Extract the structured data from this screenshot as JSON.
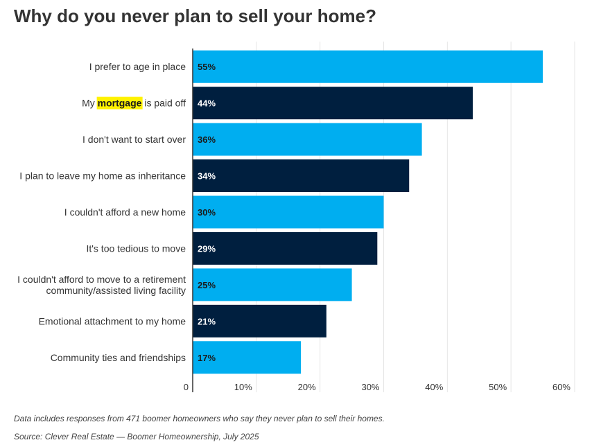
{
  "chart_data": {
    "type": "bar",
    "orientation": "horizontal",
    "title": "Why do you never plan to sell your home?",
    "categories": [
      [
        "I prefer to age in place"
      ],
      [
        "My mortgage is paid off"
      ],
      [
        "I don't want to start over"
      ],
      [
        "I plan to leave my home as inheritance"
      ],
      [
        "I couldn't afford a new home"
      ],
      [
        "It's too tedious to move"
      ],
      [
        "I couldn't afford to move to a retirement",
        "community/assisted living facility"
      ],
      [
        "Emotional attachment to my home"
      ],
      [
        "Community ties and friendships"
      ]
    ],
    "highlight": {
      "category_index": 1,
      "text": "mortgage",
      "before": "My ",
      "after": " is paid off",
      "color": "#fff200"
    },
    "values": [
      55,
      44,
      36,
      34,
      30,
      29,
      25,
      21,
      17
    ],
    "value_labels": [
      "55%",
      "44%",
      "36%",
      "34%",
      "30%",
      "29%",
      "25%",
      "21%",
      "17%"
    ],
    "bar_colors": [
      "#00aef0",
      "#001f3f"
    ],
    "value_label_colors": [
      "#1a1a1a",
      "#ffffff"
    ],
    "xlim": [
      0,
      60
    ],
    "x_ticks": [
      0,
      10,
      20,
      30,
      40,
      50,
      60
    ],
    "x_tick_labels": [
      "0",
      "10%",
      "20%",
      "30%",
      "40%",
      "50%",
      "60%"
    ],
    "grid": true,
    "gridline_color": "#e6e6e6",
    "footnotes": [
      "Data includes responses from 471 boomer homeowners who say they never plan to sell their homes.",
      "Source: Clever Real Estate — Boomer Homeownership, July 2025"
    ]
  }
}
